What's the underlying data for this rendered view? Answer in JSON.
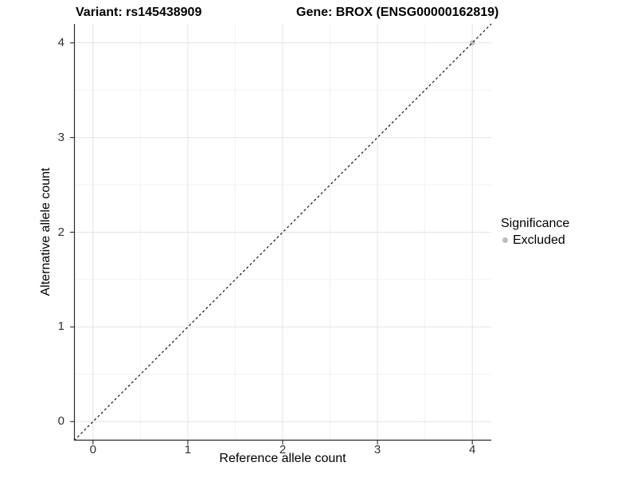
{
  "chart_data": {
    "type": "scatter",
    "title_variant": "Variant: rs145438909",
    "title_gene": "Gene: BROX (ENSG00000162819)",
    "xlabel": "Reference allele count",
    "ylabel": "Alternative allele count",
    "xlim": [
      -0.2,
      4.2
    ],
    "ylim": [
      -0.2,
      4.2
    ],
    "x_ticks": [
      0,
      1,
      2,
      3,
      4
    ],
    "y_ticks": [
      0,
      1,
      2,
      3,
      4
    ],
    "x_minor_ticks": [
      0.5,
      1.5,
      2.5,
      3.5
    ],
    "y_minor_ticks": [
      0.5,
      1.5,
      2.5,
      3.5
    ],
    "grid": true,
    "reference_line": {
      "style": "dashed",
      "slope": 1,
      "intercept": 0,
      "color": "#000000"
    },
    "points": [
      {
        "x": 4,
        "y": 4,
        "significance": "Excluded"
      }
    ],
    "legend": {
      "title": "Significance",
      "position": "right",
      "items": [
        {
          "label": "Excluded",
          "color": "#bdbdbd"
        }
      ]
    },
    "colors": {
      "point_excluded": "#c2c2c2",
      "grid_major": "#e4e4e4",
      "grid_minor": "#f2f2f2",
      "axis_line": "#2b2b2b",
      "tick_text": "#303030"
    }
  }
}
